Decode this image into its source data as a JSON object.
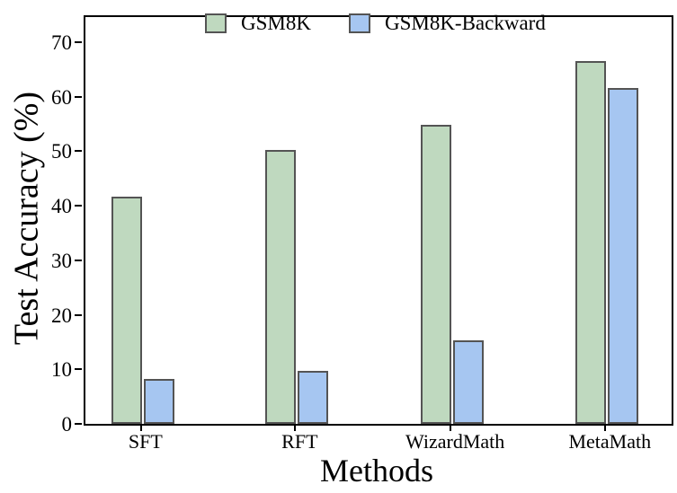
{
  "chart_data": {
    "type": "bar",
    "title": "",
    "xlabel": "Methods",
    "ylabel": "Test Accuracy (%)",
    "categories": [
      "SFT",
      "RFT",
      "WizardMath",
      "MetaMath"
    ],
    "series": [
      {
        "name": "GSM8K",
        "color": "#bfd9bf",
        "edge_color": "#545454",
        "values": [
          41.6,
          50.3,
          54.9,
          66.5
        ]
      },
      {
        "name": "GSM8K-Backward",
        "color": "#a6c6f1",
        "edge_color": "#545454",
        "values": [
          8.2,
          9.7,
          15.3,
          61.6
        ]
      }
    ],
    "y_ticks": [
      0,
      10,
      20,
      30,
      40,
      50,
      60,
      70
    ],
    "ylim": [
      0,
      74.6
    ],
    "grid": false,
    "legend_position": "top-center",
    "axis_color": "#000000",
    "background": "#ffffff"
  }
}
